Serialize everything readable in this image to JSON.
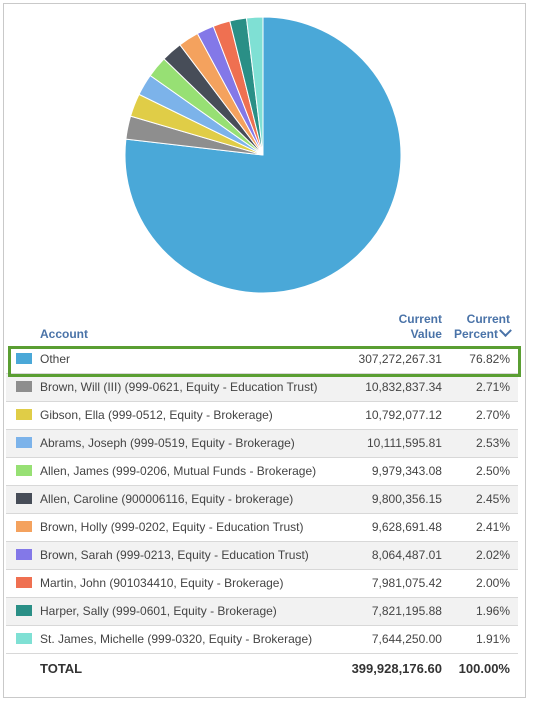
{
  "chart_data": {
    "type": "pie",
    "start": "12 o'clock",
    "direction": "clockwise",
    "slices": [
      {
        "label": "Other",
        "value": 307272267.31,
        "percent": 76.82,
        "color": "#4aa8d8"
      },
      {
        "label": "Brown, Will (III) (999-0621, Equity - Education Trust)",
        "value": 10832837.34,
        "percent": 2.71,
        "color": "#8e8e8e"
      },
      {
        "label": "Gibson, Ella (999-0512, Equity - Brokerage)",
        "value": 10792077.12,
        "percent": 2.7,
        "color": "#e0cd47"
      },
      {
        "label": "Abrams, Joseph (999-0519, Equity - Brokerage)",
        "value": 10111595.81,
        "percent": 2.53,
        "color": "#7cb3ea"
      },
      {
        "label": "Allen, James (999-0206, Mutual Funds - Brokerage)",
        "value": 9979343.08,
        "percent": 2.5,
        "color": "#97e074"
      },
      {
        "label": "Allen, Caroline (900006116, Equity - brokerage)",
        "value": 9800356.15,
        "percent": 2.45,
        "color": "#474d58"
      },
      {
        "label": "Brown, Holly (999-0202, Equity - Education Trust)",
        "value": 9628691.48,
        "percent": 2.41,
        "color": "#f4a25e"
      },
      {
        "label": "Brown, Sarah (999-0213, Equity - Education Trust)",
        "value": 8064487.01,
        "percent": 2.02,
        "color": "#8378e8"
      },
      {
        "label": "Martin, John (901034410, Equity - Brokerage)",
        "value": 7981075.42,
        "percent": 2.0,
        "color": "#ef7051"
      },
      {
        "label": "Harper, Sally (999-0601, Equity - Brokerage)",
        "value": 7821195.88,
        "percent": 1.96,
        "color": "#2a8f86"
      },
      {
        "label": "St. James, Michelle (999-0320, Equity - Brokerage)",
        "value": 7644250.0,
        "percent": 1.91,
        "color": "#7fe0d4"
      }
    ]
  },
  "table": {
    "header": {
      "account": "Account",
      "value_line1": "Current",
      "value_line2": "Value",
      "percent_line1": "Current",
      "percent_line2": "Percent"
    },
    "rows": [
      {
        "account": "Other",
        "value": "307,272,267.31",
        "percent": "76.82%",
        "color": "#4aa8d8"
      },
      {
        "account": "Brown, Will (III) (999-0621, Equity - Education Trust)",
        "value": "10,832,837.34",
        "percent": "2.71%",
        "color": "#8e8e8e"
      },
      {
        "account": "Gibson, Ella (999-0512, Equity - Brokerage)",
        "value": "10,792,077.12",
        "percent": "2.70%",
        "color": "#e0cd47"
      },
      {
        "account": "Abrams, Joseph (999-0519, Equity - Brokerage)",
        "value": "10,111,595.81",
        "percent": "2.53%",
        "color": "#7cb3ea"
      },
      {
        "account": "Allen, James (999-0206, Mutual Funds - Brokerage)",
        "value": "9,979,343.08",
        "percent": "2.50%",
        "color": "#97e074"
      },
      {
        "account": "Allen, Caroline (900006116, Equity - brokerage)",
        "value": "9,800,356.15",
        "percent": "2.45%",
        "color": "#474d58"
      },
      {
        "account": "Brown, Holly (999-0202, Equity - Education Trust)",
        "value": "9,628,691.48",
        "percent": "2.41%",
        "color": "#f4a25e"
      },
      {
        "account": "Brown, Sarah (999-0213, Equity - Education Trust)",
        "value": "8,064,487.01",
        "percent": "2.02%",
        "color": "#8378e8"
      },
      {
        "account": "Martin, John (901034410, Equity - Brokerage)",
        "value": "7,981,075.42",
        "percent": "2.00%",
        "color": "#ef7051"
      },
      {
        "account": "Harper, Sally (999-0601, Equity - Brokerage)",
        "value": "7,821,195.88",
        "percent": "1.96%",
        "color": "#2a8f86"
      },
      {
        "account": "St. James, Michelle (999-0320, Equity - Brokerage)",
        "value": "7,644,250.00",
        "percent": "1.91%",
        "color": "#7fe0d4"
      }
    ],
    "total": {
      "label": "TOTAL",
      "value": "399,928,176.60",
      "percent": "100.00%"
    }
  },
  "highlight_color": "#5a9e32",
  "header_color": "#4a73a8",
  "sort_icon": "chevron-down-icon"
}
